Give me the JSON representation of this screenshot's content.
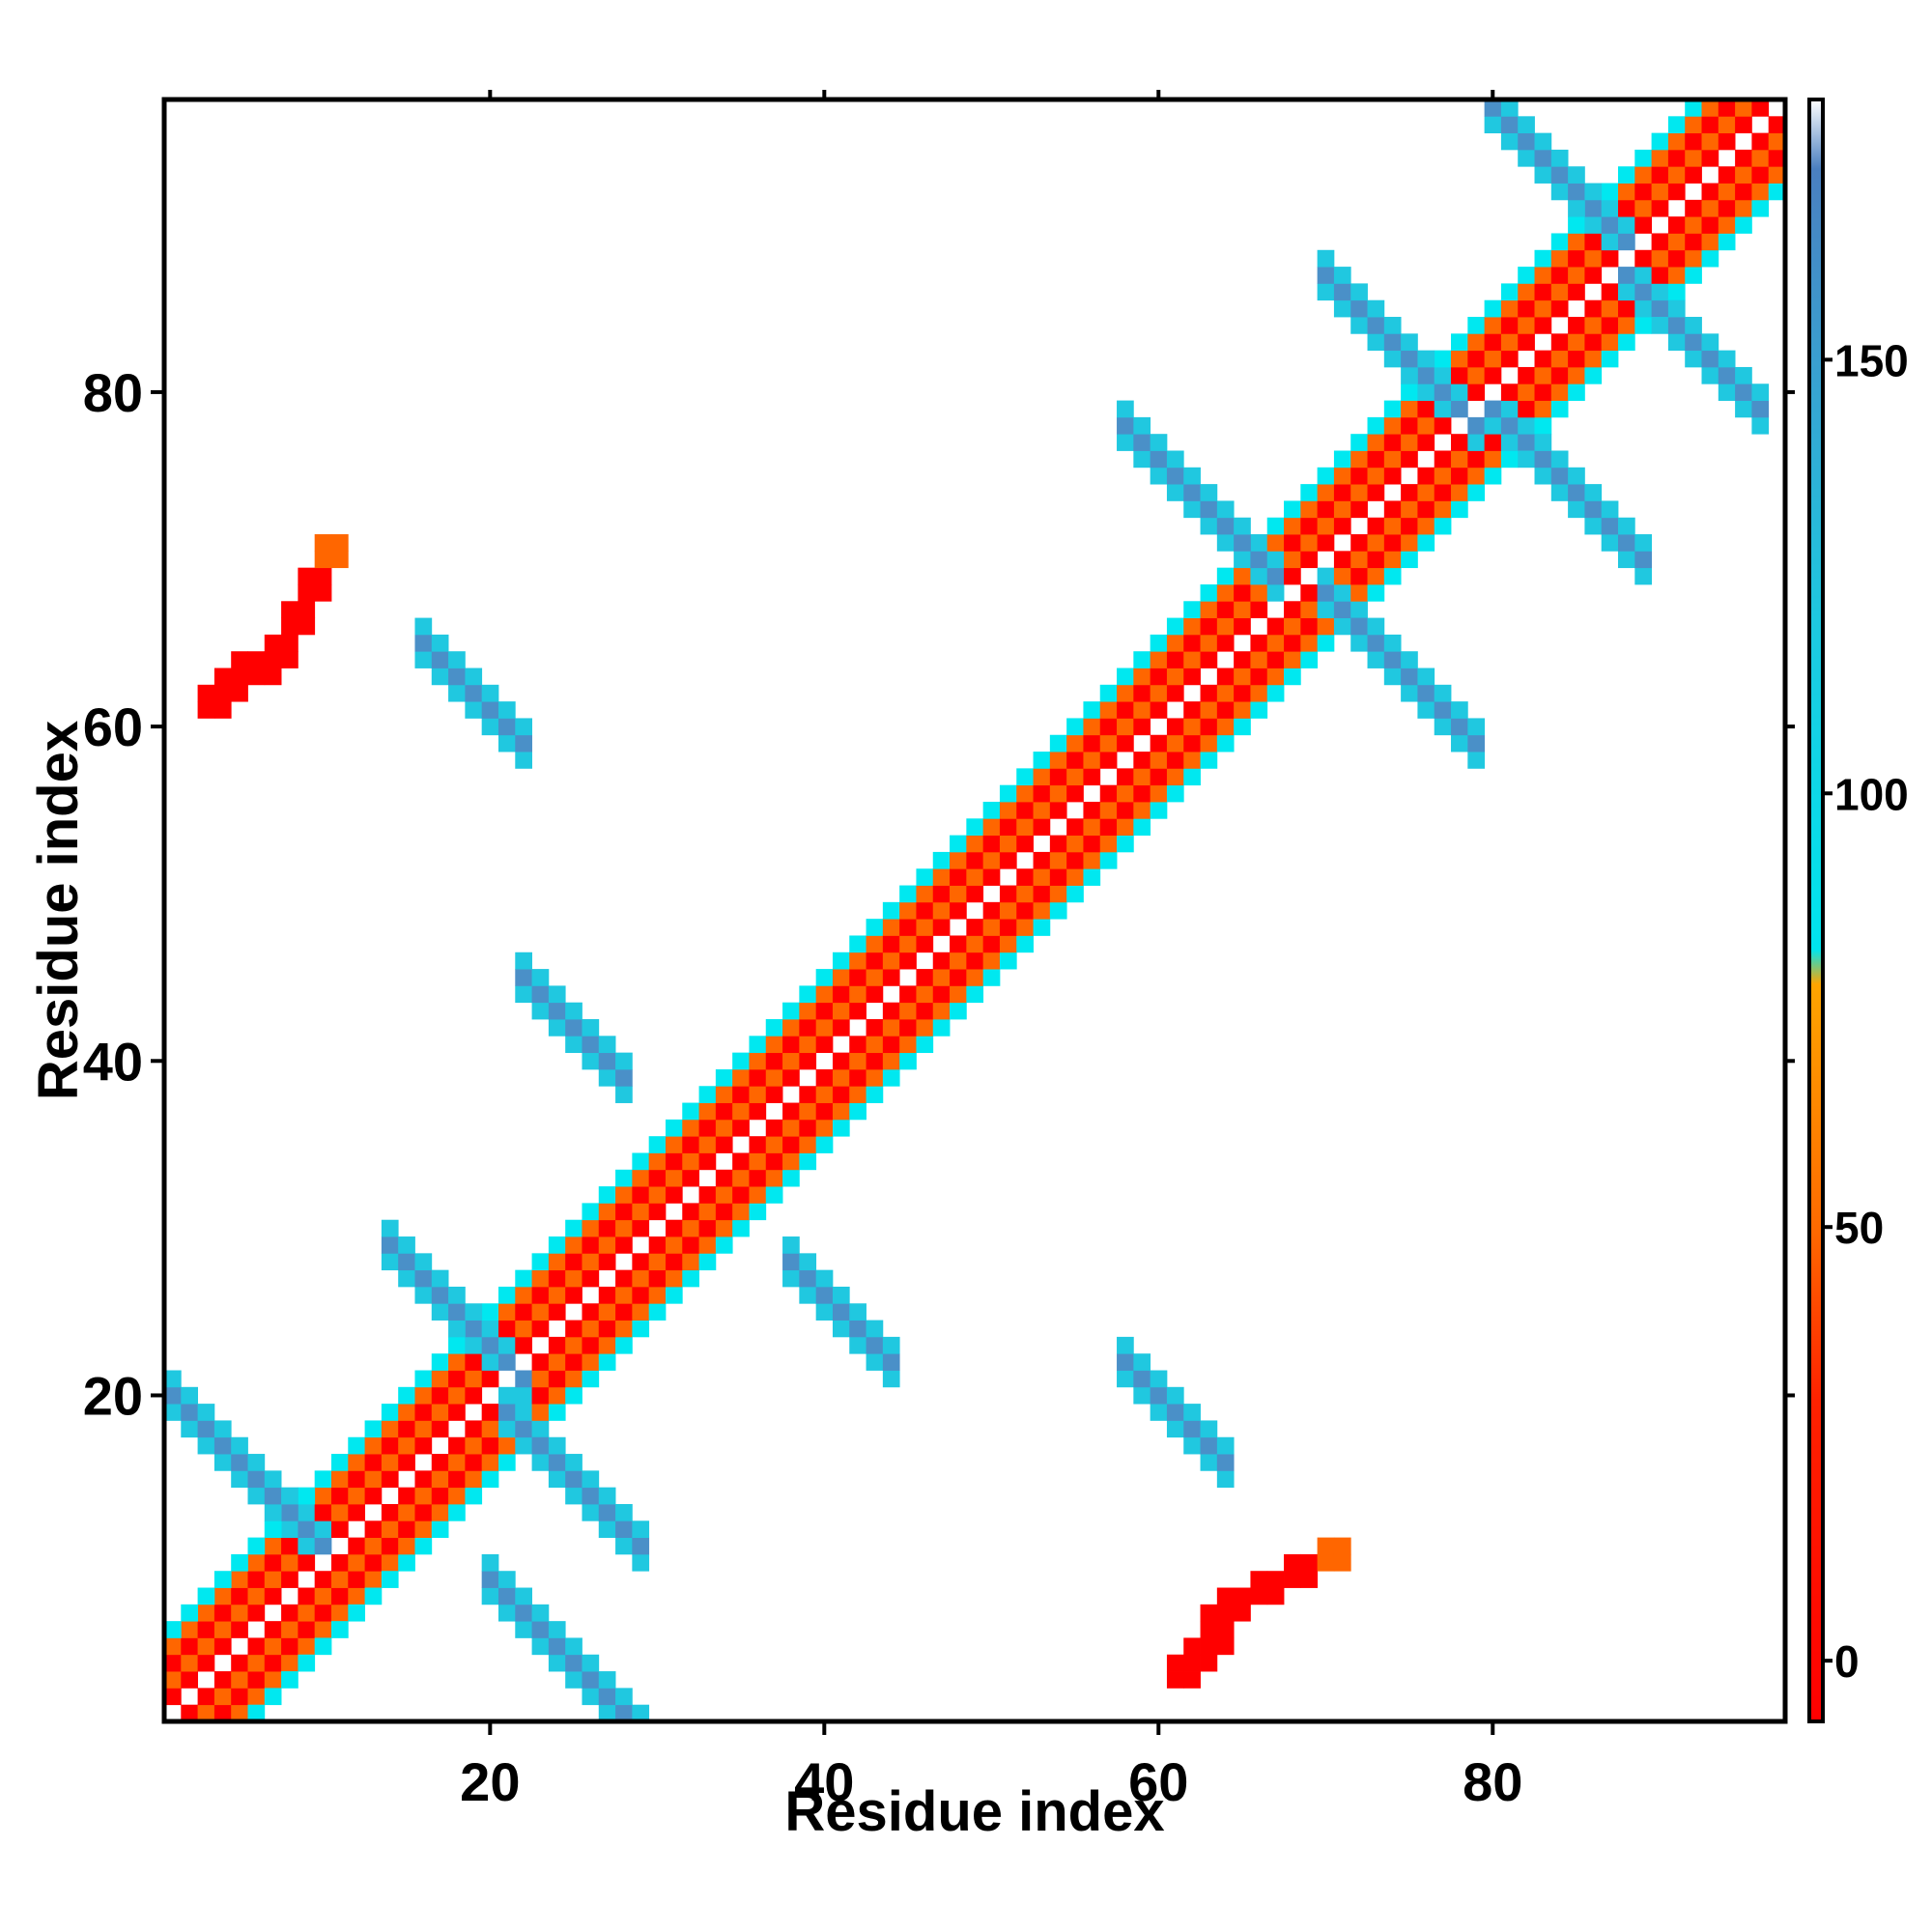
{
  "chart_data": {
    "type": "heatmap",
    "title": "",
    "xlabel": "Residue index",
    "ylabel": "Residue index",
    "xlim": [
      0.5,
      97.5
    ],
    "ylim": [
      0.5,
      97.5
    ],
    "x_ticks": [
      20,
      40,
      60,
      80
    ],
    "x_tick_labels": [
      "20",
      "40",
      "60",
      "80"
    ],
    "y_ticks": [
      20,
      40,
      60,
      80
    ],
    "y_tick_labels": [
      "20",
      "40",
      "60",
      "80"
    ],
    "colorbar": {
      "range": [
        -7,
        180
      ],
      "ticks": [
        0,
        50,
        100,
        150
      ],
      "tick_labels": [
        "0",
        "50",
        "100",
        "150"
      ],
      "stops": [
        {
          "value": -7,
          "color": "#ff0000"
        },
        {
          "value": 30,
          "color": "#ff2200"
        },
        {
          "value": 50,
          "color": "#ff6a00"
        },
        {
          "value": 78,
          "color": "#ffa500"
        },
        {
          "value": 82,
          "color": "#00e5ee"
        },
        {
          "value": 120,
          "color": "#1ec8e0"
        },
        {
          "value": 150,
          "color": "#3a9fd0"
        },
        {
          "value": 172,
          "color": "#4a7fc0"
        },
        {
          "value": 180,
          "color": "#ffffff"
        }
      ]
    },
    "colors": {
      "red": "#ff0000",
      "red_orange": "#ff2200",
      "orange": "#ff6600",
      "light_orange": "#ffa000",
      "cyan": "#00e8f0",
      "light_blue": "#20c8e0",
      "steel_blue": "#4a90c8"
    },
    "regions": [
      {
        "desc": "diagonal alpha-helix start",
        "i": [
          1,
          10
        ],
        "j_offset": [
          1,
          4
        ],
        "value_by_offset": {
          "1": 5,
          "2": 40,
          "3": 10,
          "4": 55
        }
      },
      {
        "desc": "diagonal main",
        "i": [
          1,
          97
        ],
        "j_offset": [
          1,
          5
        ],
        "value_by_offset": {
          "1": 0,
          "2": 45,
          "3": 20,
          "4": 60,
          "5": 100
        }
      },
      {
        "desc": "antiparallel strand 1-9 vs 10-20",
        "i0": 1,
        "j0": 20,
        "len": 10,
        "value": 150
      },
      {
        "desc": "antiparallel 9-20 vs 20-30",
        "i0": 20,
        "j0": 9,
        "len": 10,
        "value": 150
      },
      {
        "desc": "antiparallel 13-22 vs 19-29",
        "i0": 14,
        "j0": 29,
        "len": 9,
        "value": 150
      },
      {
        "desc": "antiparallel 20-29 vs 10-19",
        "i0": 21,
        "j0": 19,
        "len": 9,
        "value": 150
      },
      {
        "desc": "antiparallel 38-44 vs 22-28",
        "i0": 38,
        "j0": 28,
        "len": 7,
        "value": 150
      },
      {
        "desc": "antiparallel 22-28 vs 38-45",
        "i0": 22,
        "j0": 45,
        "len": 7,
        "value": 150
      },
      {
        "desc": "antiparallel 15-22 vs 58-65",
        "i0": 16,
        "j0": 65,
        "len": 7,
        "value": 150
      },
      {
        "desc": "antiparallel 58-65 vs 15-22",
        "i0": 58,
        "j0": 22,
        "len": 7,
        "value": 150
      },
      {
        "desc": "antiparallel 57-67 vs 69-76",
        "i0": 58,
        "j0": 78,
        "len": 10,
        "value": 150
      },
      {
        "desc": "antiparallel 69-78 vs 58-68",
        "i0": 70,
        "j0": 68,
        "len": 10,
        "value": 150
      },
      {
        "desc": "antiparallel 69-79 vs 80-87",
        "i0": 70,
        "j0": 87,
        "len": 10,
        "value": 150
      },
      {
        "desc": "antiparallel 80-87 vs 69-79",
        "i0": 80,
        "j0": 79,
        "len": 10,
        "value": 150
      },
      {
        "desc": "antiparallel 79-87 vs 88-97",
        "i0": 80,
        "j0": 97,
        "len": 9,
        "value": 150
      },
      {
        "desc": "antiparallel 88-97 vs 79-87",
        "i0": 88,
        "j0": 87,
        "len": 9,
        "value": 150
      },
      {
        "desc": "corner cluster top-left",
        "cells": [
          [
            3,
            61,
            30
          ],
          [
            4,
            62,
            5
          ],
          [
            5,
            63,
            0
          ],
          [
            6,
            63,
            0
          ],
          [
            7,
            64,
            5
          ],
          [
            8,
            66,
            0
          ],
          [
            9,
            68,
            0
          ],
          [
            10,
            70,
            50
          ]
        ]
      },
      {
        "desc": "corner cluster bottom-right",
        "cells": [
          [
            61,
            3,
            30
          ],
          [
            62,
            4,
            5
          ],
          [
            63,
            5,
            0
          ],
          [
            63,
            6,
            0
          ],
          [
            64,
            7,
            5
          ],
          [
            66,
            8,
            0
          ],
          [
            68,
            9,
            0
          ],
          [
            70,
            10,
            50
          ]
        ]
      }
    ]
  }
}
